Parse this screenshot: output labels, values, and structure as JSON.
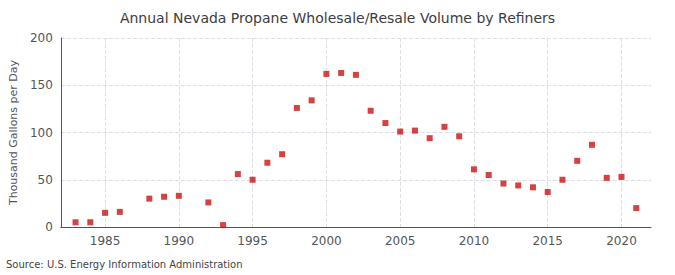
{
  "chart_data": {
    "type": "scatter",
    "title": "Annual Nevada Propane Wholesale/Resale Volume by Refiners",
    "ylabel": "Thousand Gallons per Day",
    "source": "Source: U.S. Energy Information Administration",
    "x": [
      1983,
      1984,
      1985,
      1986,
      1988,
      1989,
      1990,
      1992,
      1993,
      1994,
      1995,
      1996,
      1997,
      1998,
      1999,
      2000,
      2001,
      2002,
      2003,
      2004,
      2005,
      2006,
      2007,
      2008,
      2009,
      2010,
      2011,
      2012,
      2013,
      2014,
      2015,
      2016,
      2017,
      2018,
      2019,
      2020,
      2021
    ],
    "values": [
      5,
      5,
      15,
      16,
      30,
      32,
      33,
      26,
      2,
      56,
      50,
      68,
      77,
      126,
      134,
      162,
      163,
      161,
      123,
      110,
      101,
      102,
      94,
      106,
      96,
      61,
      55,
      46,
      44,
      42,
      37,
      50,
      70,
      87,
      52,
      53,
      20
    ],
    "color": "#cc1111",
    "marker": "square",
    "xlim": [
      1982.0,
      2022.0
    ],
    "xticks": [
      1985,
      1990,
      1995,
      2000,
      2005,
      2010,
      2015,
      2020
    ],
    "ylim": [
      0,
      200
    ],
    "yticks": [
      0,
      50,
      100,
      150,
      200
    ],
    "grid": true
  }
}
